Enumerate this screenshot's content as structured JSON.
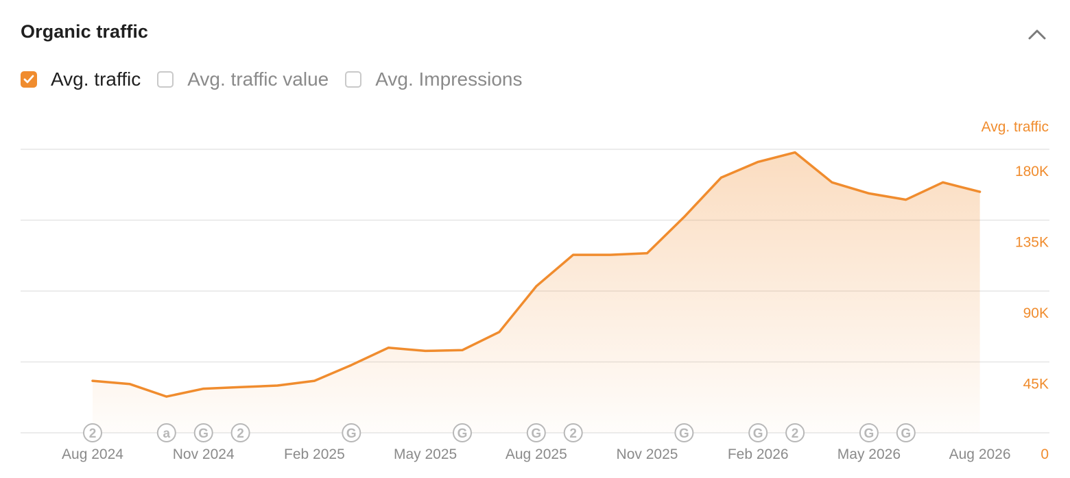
{
  "panel": {
    "title": "Organic traffic",
    "collapse_icon": "chevron-up-icon"
  },
  "legend": [
    {
      "label": "Avg. traffic",
      "checked": true
    },
    {
      "label": "Avg. traffic value",
      "checked": false
    },
    {
      "label": "Avg. Impressions",
      "checked": false
    }
  ],
  "colors": {
    "accent": "#f08c2e",
    "grid": "#e6e6e6",
    "marker": "#b8b8b8",
    "axis_text": "#8a8a8a"
  },
  "chart_data": {
    "type": "area",
    "title": "",
    "ylabel": "Avg. traffic",
    "xlabel": "",
    "ylim": [
      0,
      180000
    ],
    "y_ticks": [
      "0",
      "45K",
      "90K",
      "135K",
      "180K"
    ],
    "x_tick_labels": [
      "Aug 2024",
      "Nov 2024",
      "Feb 2025",
      "May 2025",
      "Aug 2025",
      "Nov 2025",
      "Feb 2026",
      "May 2026",
      "Aug 2026"
    ],
    "grid": true,
    "series": [
      {
        "name": "Avg. traffic",
        "x": [
          "2024-08",
          "2024-09",
          "2024-10",
          "2024-11",
          "2024-12",
          "2025-01",
          "2025-02",
          "2025-03",
          "2025-04",
          "2025-05",
          "2025-06",
          "2025-07",
          "2025-08",
          "2025-09",
          "2025-10",
          "2025-11",
          "2025-12",
          "2026-01",
          "2026-02",
          "2026-03",
          "2026-04",
          "2026-05",
          "2026-06",
          "2026-07",
          "2026-08"
        ],
        "values": [
          33000,
          31000,
          23000,
          28000,
          29000,
          30000,
          33000,
          43000,
          54000,
          52000,
          52500,
          64000,
          93000,
          113000,
          113000,
          114000,
          137000,
          162000,
          172000,
          178000,
          159000,
          152000,
          148000,
          159000,
          153000
        ]
      }
    ],
    "annotations": [
      {
        "month": "2024-08",
        "symbol": "2"
      },
      {
        "month": "2024-10",
        "symbol": "a"
      },
      {
        "month": "2024-11",
        "symbol": "G"
      },
      {
        "month": "2024-12",
        "symbol": "2"
      },
      {
        "month": "2025-03",
        "symbol": "G"
      },
      {
        "month": "2025-06",
        "symbol": "G"
      },
      {
        "month": "2025-08",
        "symbol": "G"
      },
      {
        "month": "2025-09",
        "symbol": "2"
      },
      {
        "month": "2025-12",
        "symbol": "G"
      },
      {
        "month": "2026-02",
        "symbol": "G"
      },
      {
        "month": "2026-03",
        "symbol": "2"
      },
      {
        "month": "2026-05",
        "symbol": "G"
      },
      {
        "month": "2026-06",
        "symbol": "G"
      }
    ]
  }
}
